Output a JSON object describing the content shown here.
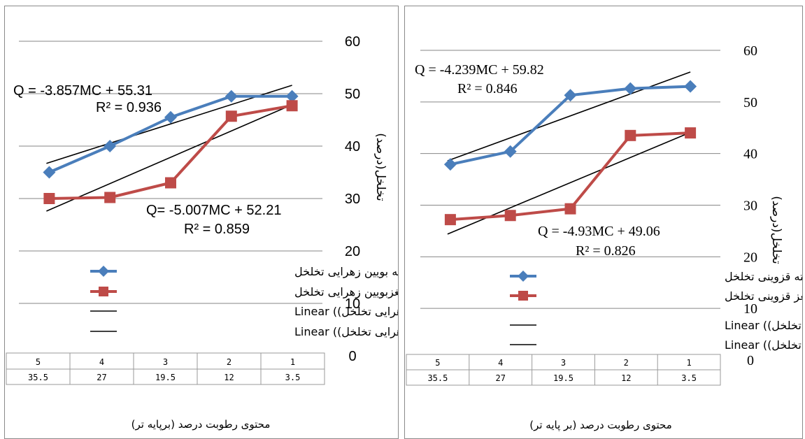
{
  "charts": [
    {
      "caption": "محتوی رطوبت درصد (برپایه تر)",
      "ylabel": "تخلخل(درصد)",
      "ylim": [
        0,
        60
      ],
      "ytick_labels": [
        "0",
        "10",
        "20",
        "30",
        "40",
        "50",
        "60"
      ],
      "grid": true,
      "table": {
        "row1": [
          "5",
          "4",
          "3",
          "2",
          "1"
        ],
        "row2": [
          "35.5",
          "27",
          "19.5",
          "12",
          "3.5"
        ]
      },
      "legend": [
        {
          "label": "پسته بویین زهرایی تخلخل",
          "color": "#4a7ebb",
          "marker": "diamond"
        },
        {
          "label": "مغزبویین زهرایی تخلخل",
          "color": "#be4b48",
          "marker": "square"
        },
        {
          "label": "پسته بویین زهرایی تخلخل)) Linear",
          "color": "#000000",
          "marker": "line"
        },
        {
          "label": "مغزبویین زهرایی تخلخل)) Linear",
          "color": "#000000",
          "marker": "line"
        }
      ],
      "annotations": [
        {
          "eq": "Q = -3.857MC + 55.31",
          "r2": "R² = 0.936"
        },
        {
          "eq": "Q= -5.007MC + 52.21",
          "r2": "R² = 0.859"
        }
      ]
    },
    {
      "caption": "محتوی رطوبت درصد (بر پایه تر)",
      "ylabel": "تخلخل(درصد)",
      "ylim": [
        0,
        60
      ],
      "ytick_labels": [
        "0",
        "10",
        "20",
        "30",
        "40",
        "50",
        "60"
      ],
      "grid": true,
      "table": {
        "row1": [
          "5",
          "4",
          "3",
          "2",
          "1"
        ],
        "row2": [
          "35.5",
          "27",
          "19.5",
          "12",
          "3.5"
        ]
      },
      "legend": [
        {
          "label": "پسته قزوینی تخلخل",
          "color": "#4a7ebb",
          "marker": "diamond"
        },
        {
          "label": "مغز قزوینی تخلخل",
          "color": "#be4b48",
          "marker": "square"
        },
        {
          "label": "پسته قزوینی تخلخل)) Linear",
          "color": "#000000",
          "marker": "line"
        },
        {
          "label": "مغز قزوینی تخلخل)) Linear",
          "color": "#000000",
          "marker": "line"
        }
      ],
      "annotations": [
        {
          "eq": "Q = -4.239MC + 59.82",
          "r2": "R² = 0.846"
        },
        {
          "eq": "Q = -4.93MC + 49.06",
          "r2": "R² = 0.826"
        }
      ]
    }
  ],
  "chart_data": [
    {
      "type": "line",
      "categories": [
        "35.5",
        "27",
        "19.5",
        "12",
        "3.5"
      ],
      "ylim": [
        0,
        60
      ],
      "series": [
        {
          "name": "پسته بویین زهرایی تخلخل",
          "color": "#4a7ebb",
          "values": [
            35,
            40,
            45.5,
            49.5,
            49.5
          ]
        },
        {
          "name": "مغزبویین زهرایی تخلخل",
          "color": "#be4b48",
          "values": [
            30,
            30.2,
            33,
            45.7,
            47.7
          ]
        }
      ],
      "trendlines": [
        {
          "name": "پسته بویین زهرایی تخلخل)) Linear",
          "start": 36.7,
          "end": 51.6
        },
        {
          "name": "مغزبویین زهرایی تخلخل)) Linear",
          "start": 27.6,
          "end": 47.9
        }
      ]
    },
    {
      "type": "line",
      "categories": [
        "35.5",
        "27",
        "19.5",
        "12",
        "3.5"
      ],
      "ylim": [
        0,
        60
      ],
      "series": [
        {
          "name": "پسته قزوینی تخلخل",
          "color": "#4a7ebb",
          "values": [
            37.9,
            40.4,
            51.3,
            52.6,
            53
          ]
        },
        {
          "name": "مغز قزوینی تخلخل",
          "color": "#be4b48",
          "values": [
            27.2,
            28,
            29.3,
            43.5,
            44
          ]
        }
      ],
      "trendlines": [
        {
          "name": "پسته قزوینی تخلخل)) Linear",
          "start": 38.6,
          "end": 55.8
        },
        {
          "name": "مغز قزوینی تخلخل)) Linear",
          "start": 24.4,
          "end": 44.1
        }
      ]
    }
  ]
}
